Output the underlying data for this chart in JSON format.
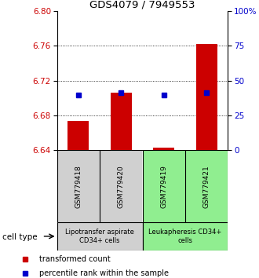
{
  "title": "GDS4079 / 7949553",
  "samples": [
    "GSM779418",
    "GSM779420",
    "GSM779419",
    "GSM779421"
  ],
  "red_values": [
    6.674,
    6.706,
    6.643,
    6.762
  ],
  "blue_values": [
    6.703,
    6.706,
    6.703,
    6.706
  ],
  "ylim_left": [
    6.64,
    6.8
  ],
  "ylim_right": [
    0,
    100
  ],
  "yticks_left": [
    6.64,
    6.68,
    6.72,
    6.76,
    6.8
  ],
  "yticks_right": [
    0,
    25,
    50,
    75,
    100
  ],
  "ytick_labels_right": [
    "0",
    "25",
    "50",
    "75",
    "100%"
  ],
  "dotted_lines": [
    6.68,
    6.72,
    6.76
  ],
  "groups": [
    {
      "label": "Lipotransfer aspirate\nCD34+ cells",
      "color": "#d0d0d0",
      "samples": [
        0,
        1
      ]
    },
    {
      "label": "Leukapheresis CD34+\ncells",
      "color": "#90ee90",
      "samples": [
        2,
        3
      ]
    }
  ],
  "bar_color": "#cc0000",
  "blue_color": "#0000cc",
  "bar_width": 0.5,
  "legend_red": "transformed count",
  "legend_blue": "percentile rank within the sample",
  "cell_type_label": "cell type",
  "left_color": "#cc0000",
  "right_color": "#0000cc"
}
